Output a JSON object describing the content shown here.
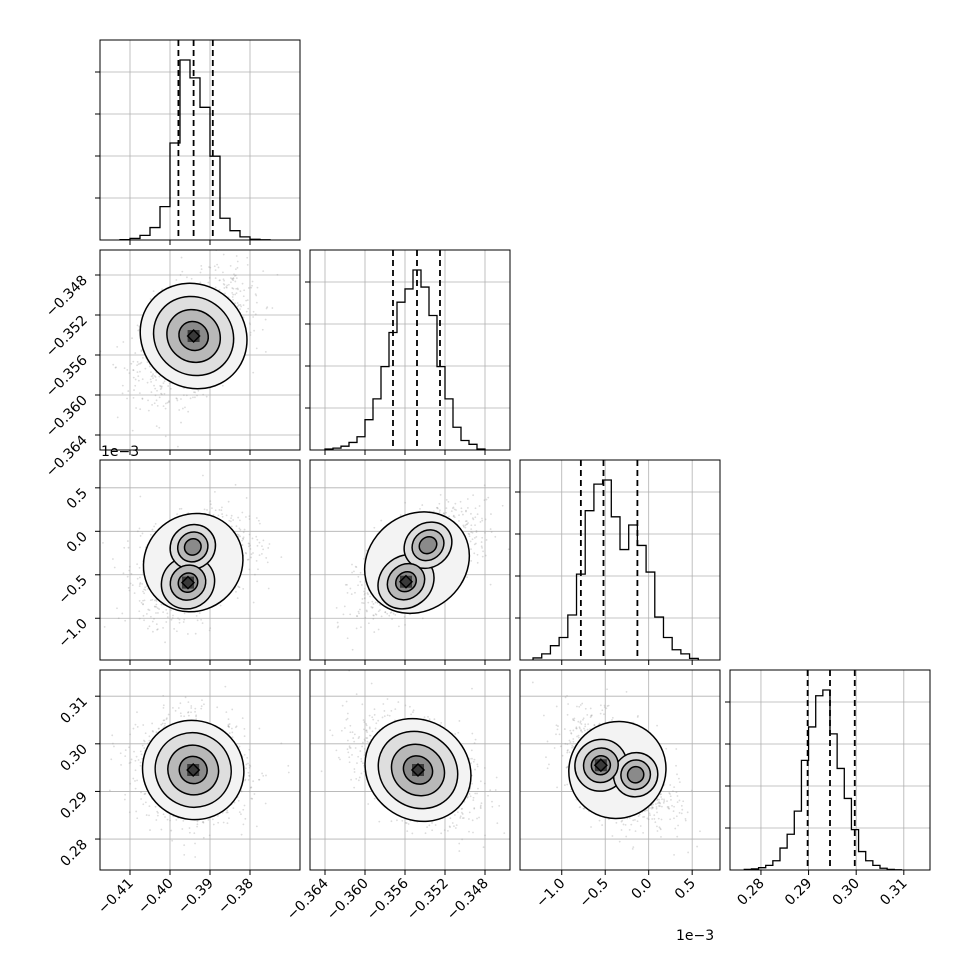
{
  "chart_data": {
    "type": "corner",
    "grid": true,
    "parameters": [
      {
        "index": 0,
        "range": [
          -0.4175,
          -0.3675
        ],
        "ticks": [
          -0.41,
          -0.4,
          -0.39,
          -0.38
        ],
        "tick_labels": [
          "−0.41",
          "−0.40",
          "−0.39",
          "−0.38"
        ],
        "offset_text": "",
        "quantiles": [
          -0.3979,
          -0.3941,
          -0.3893
        ]
      },
      {
        "index": 1,
        "range": [
          -0.3655,
          -0.3455
        ],
        "ticks": [
          -0.364,
          -0.36,
          -0.356,
          -0.352,
          -0.348
        ],
        "tick_labels": [
          "−0.364",
          "−0.360",
          "−0.356",
          "−0.352",
          "−0.348"
        ],
        "offset_text": "",
        "quantiles": [
          -0.3572,
          -0.3548,
          -0.3525
        ]
      },
      {
        "index": 2,
        "range": [
          -1.48,
          0.82
        ],
        "ticks": [
          -1.0,
          -0.5,
          0.0,
          0.5
        ],
        "tick_labels": [
          "−1.0",
          "−0.5",
          "0.0",
          "0.5"
        ],
        "offset_text": "1e−3",
        "quantiles": [
          -0.78,
          -0.52,
          -0.13
        ]
      },
      {
        "index": 3,
        "range": [
          0.2735,
          0.3155
        ],
        "ticks": [
          0.28,
          0.29,
          0.3,
          0.31
        ],
        "tick_labels": [
          "0.28",
          "0.29",
          "0.30",
          "0.31"
        ],
        "offset_text": "",
        "quantiles": [
          0.2898,
          0.2945,
          0.2997
        ]
      }
    ],
    "histograms": [
      {
        "param": 0,
        "edges": [
          -0.4125,
          -0.41,
          -0.4075,
          -0.405,
          -0.4025,
          -0.4,
          -0.3975,
          -0.395,
          -0.3925,
          -0.39,
          -0.3875,
          -0.385,
          -0.3825,
          -0.38,
          -0.3775,
          -0.375
        ],
        "counts": [
          0.5,
          2,
          6,
          16,
          43,
          125,
          232,
          209,
          171,
          108,
          28,
          12,
          4,
          1,
          0.3
        ]
      },
      {
        "param": 1,
        "edges": [
          -0.364,
          -0.3632,
          -0.3624,
          -0.3616,
          -0.3608,
          -0.36,
          -0.3592,
          -0.3584,
          -0.3576,
          -0.3568,
          -0.356,
          -0.3552,
          -0.3544,
          -0.3536,
          -0.3528,
          -0.352,
          -0.3512,
          -0.3504,
          -0.3496,
          -0.3488,
          -0.348
        ],
        "counts": [
          0.5,
          1,
          2,
          4,
          7,
          16,
          27,
          44,
          62,
          78,
          85,
          95,
          86,
          71,
          44,
          27,
          12,
          5,
          3,
          0.5
        ]
      },
      {
        "param": 2,
        "edges": [
          -1.33,
          -1.23,
          -1.13,
          -1.03,
          -0.93,
          -0.83,
          -0.73,
          -0.63,
          -0.53,
          -0.43,
          -0.33,
          -0.23,
          -0.13,
          -0.03,
          0.07,
          0.17,
          0.27,
          0.37,
          0.47,
          0.57
        ],
        "counts": [
          1,
          3,
          7,
          11,
          22,
          42,
          73,
          86,
          88,
          70,
          54,
          66,
          56,
          43,
          21,
          11,
          5,
          3,
          0.8
        ]
      },
      {
        "param": 3,
        "edges": [
          0.2765,
          0.278,
          0.2795,
          0.281,
          0.2825,
          0.284,
          0.2855,
          0.287,
          0.2885,
          0.29,
          0.2915,
          0.293,
          0.2945,
          0.296,
          0.2975,
          0.299,
          0.3005,
          0.302,
          0.3035,
          0.305,
          0.3065,
          0.308,
          0.3095
        ],
        "counts": [
          0.5,
          1,
          2,
          4,
          8,
          19,
          31,
          51,
          95,
          124,
          151,
          156,
          118,
          88,
          62,
          35,
          16,
          8,
          4,
          1.5,
          0.5,
          0.2
        ]
      }
    ],
    "joint": [
      {
        "x": 0,
        "y": 1,
        "center": [
          -0.3942,
          -0.3541
        ],
        "sd": [
          0.0058,
          0.0025
        ],
        "rho": 0.45,
        "modes": [
          {
            "at": [
              -0.3941,
              -0.3541
            ],
            "w": 1.0
          }
        ]
      },
      {
        "x": 0,
        "y": 2,
        "center": [
          -0.3942,
          -0.36
        ],
        "sd": [
          0.0058,
          0.25
        ],
        "rho": 0.35,
        "modes": [
          {
            "at": [
              -0.3955,
              -0.59
            ],
            "w": 0.62
          },
          {
            "at": [
              -0.3943,
              -0.18
            ],
            "w": 0.38
          }
        ]
      },
      {
        "x": 1,
        "y": 2,
        "center": [
          -0.3548,
          -0.36
        ],
        "sd": [
          0.0025,
          0.25
        ],
        "rho": 0.6,
        "modes": [
          {
            "at": [
              -0.3559,
              -0.58
            ],
            "w": 0.62
          },
          {
            "at": [
              -0.3537,
              -0.16
            ],
            "w": 0.38
          }
        ]
      },
      {
        "x": 0,
        "y": 3,
        "center": [
          -0.3942,
          0.2945
        ],
        "sd": [
          0.0058,
          0.0047
        ],
        "rho": -0.05,
        "modes": [
          {
            "at": [
              -0.3942,
              0.2945
            ],
            "w": 1.0
          }
        ]
      },
      {
        "x": 1,
        "y": 3,
        "center": [
          -0.3548,
          0.2945
        ],
        "sd": [
          0.0025,
          0.0047
        ],
        "rho": -0.4,
        "modes": [
          {
            "at": [
              -0.3547,
              0.2945
            ],
            "w": 1.0
          }
        ]
      },
      {
        "x": 2,
        "y": 3,
        "center": [
          -0.36,
          0.2945
        ],
        "sd": [
          0.25,
          0.0047
        ],
        "rho": -0.45,
        "modes": [
          {
            "at": [
              -0.55,
              0.2955
            ],
            "w": 0.62
          },
          {
            "at": [
              -0.15,
              0.2935
            ],
            "w": 0.38
          }
        ]
      }
    ]
  }
}
